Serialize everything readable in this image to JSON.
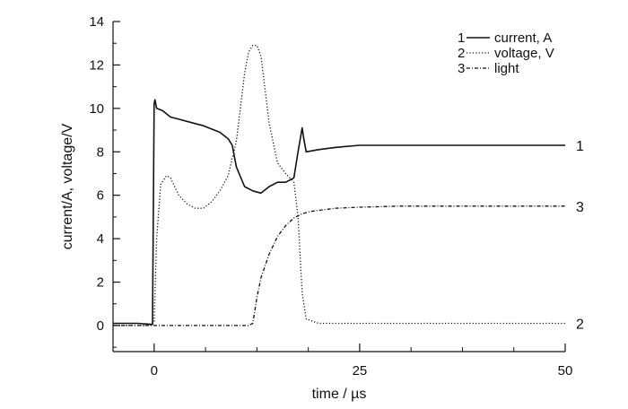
{
  "chart_data": {
    "type": "line",
    "xlabel": "time / µs",
    "ylabel": "current/A, voltage/V",
    "xlim": [
      -5,
      50
    ],
    "ylim": [
      -1.2,
      14
    ],
    "x_ticks": [
      0,
      25,
      50
    ],
    "y_ticks": [
      0,
      2,
      4,
      6,
      8,
      10,
      12,
      14
    ],
    "grid": false,
    "legend_position": "top-right",
    "series": [
      {
        "id": "1",
        "name": "current, A",
        "style": "solid",
        "color": "#111111",
        "end_label": "1",
        "x": [
          -5,
          -2,
          -0.2,
          0,
          0.1,
          0.3,
          1,
          2,
          3,
          5,
          6,
          8,
          9,
          9.5,
          10,
          11,
          12,
          13,
          14,
          15,
          16,
          17,
          17.5,
          18,
          18.2,
          18.5,
          20,
          22,
          25,
          30,
          35,
          40,
          45,
          50
        ],
        "y": [
          0.1,
          0.1,
          0.05,
          10.2,
          10.4,
          10.0,
          9.9,
          9.6,
          9.5,
          9.3,
          9.2,
          8.9,
          8.6,
          8.3,
          7.3,
          6.4,
          6.2,
          6.1,
          6.4,
          6.6,
          6.6,
          6.8,
          8.0,
          9.1,
          8.6,
          8.0,
          8.1,
          8.2,
          8.3,
          8.3,
          8.3,
          8.3,
          8.3,
          8.3
        ]
      },
      {
        "id": "2",
        "name": "voltage, V",
        "style": "dotted",
        "color": "#111111",
        "end_label": "2",
        "x": [
          -5,
          -1,
          -0.2,
          0,
          0.3,
          0.8,
          1.5,
          2,
          3,
          4,
          5,
          6,
          7,
          8,
          9,
          10,
          11,
          11.5,
          12,
          12.5,
          13,
          14,
          15,
          16,
          17,
          17.5,
          18,
          18.5,
          20,
          25,
          30,
          35,
          40,
          45,
          50
        ],
        "y": [
          0.0,
          0.0,
          0.05,
          0.2,
          4.0,
          6.5,
          6.9,
          6.8,
          6.0,
          5.6,
          5.4,
          5.4,
          5.7,
          6.2,
          6.9,
          8.5,
          11.6,
          12.6,
          12.9,
          12.9,
          12.4,
          9.3,
          7.5,
          7.0,
          6.6,
          5.0,
          1.5,
          0.3,
          0.1,
          0.1,
          0.1,
          0.1,
          0.1,
          0.1,
          0.1
        ]
      },
      {
        "id": "3",
        "name": "light",
        "style": "dashdot",
        "color": "#111111",
        "end_label": "3",
        "x": [
          -5,
          0,
          5,
          10,
          11.5,
          12,
          12.5,
          13,
          14,
          15,
          16,
          17,
          18,
          19,
          20,
          22,
          25,
          30,
          35,
          40,
          45,
          50
        ],
        "y": [
          0.0,
          0.0,
          0.0,
          0.0,
          0.0,
          0.1,
          1.3,
          2.2,
          3.3,
          4.1,
          4.6,
          4.95,
          5.15,
          5.25,
          5.3,
          5.4,
          5.45,
          5.5,
          5.5,
          5.5,
          5.5,
          5.5
        ]
      }
    ]
  }
}
